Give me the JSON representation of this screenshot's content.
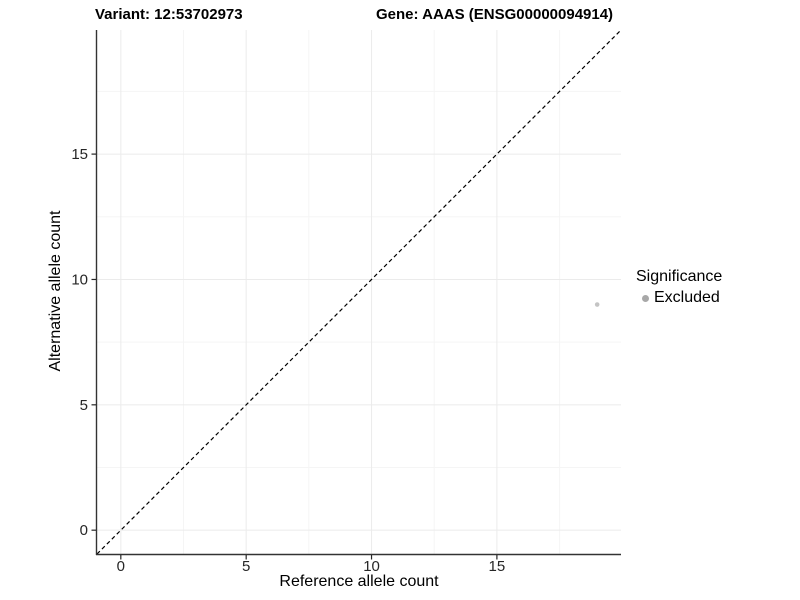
{
  "chart_data": {
    "type": "scatter",
    "title_left": "Variant: 12:53702973",
    "title_right": "Gene: AAAS (ENSG00000094914)",
    "x_axis": {
      "label": "Reference allele count",
      "limits": [
        0,
        19
      ],
      "major_ticks": [
        0,
        5,
        10,
        15
      ],
      "minor_ticks": [
        2.5,
        7.5,
        12.5,
        17.5
      ]
    },
    "y_axis": {
      "label": "Alternative allele count",
      "limits": [
        0,
        19
      ],
      "major_ticks": [
        0,
        5,
        10,
        15
      ],
      "minor_ticks": [
        2.5,
        7.5,
        12.5,
        17.5
      ]
    },
    "reference_line": {
      "kind": "identity",
      "slope": 1,
      "intercept": 0,
      "style": "dashed",
      "color": "#000000"
    },
    "series": [
      {
        "name": "Excluded",
        "color": "#c4c4c4",
        "point_radius": 2.3,
        "points": [
          {
            "x": 19,
            "y": 9
          }
        ]
      }
    ],
    "legend": {
      "title": "Significance",
      "position": "right",
      "items": [
        {
          "label": "Excluded",
          "color": "#a8a8a8"
        }
      ]
    },
    "grid": true,
    "colors": {
      "background": "#ffffff",
      "major_grid": "#ebebeb",
      "minor_grid": "#f5f5f5",
      "axis_line": "#333333",
      "tick_text": "#262626"
    }
  }
}
